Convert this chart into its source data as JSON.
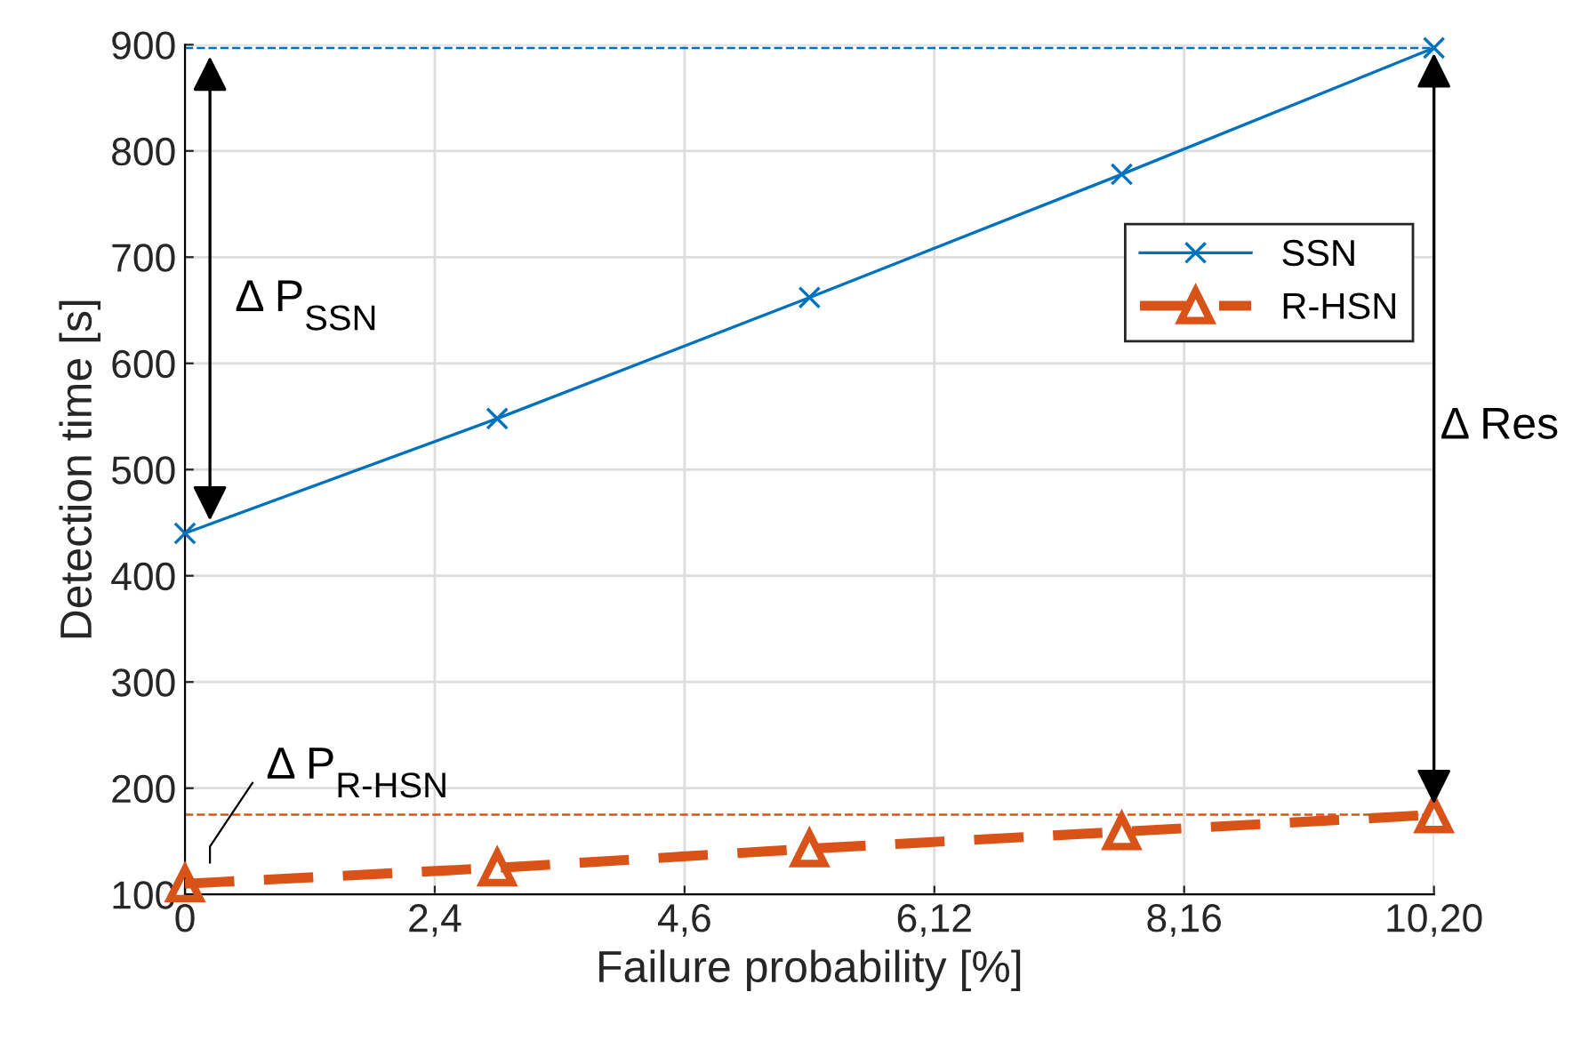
{
  "chart_data": {
    "type": "line",
    "xlabel": "Failure probability [%]",
    "ylabel": "Detection time [s]",
    "categories": [
      "0",
      null,
      null,
      null,
      "2,4",
      null,
      null,
      null,
      "4,6",
      null,
      null,
      null,
      "6,12",
      null,
      null,
      null,
      "8,16",
      null,
      null,
      null,
      "10,20"
    ],
    "series": [
      {
        "name": "SSN",
        "color": "#0072bd",
        "values": [
          440,
          null,
          null,
          null,
          null,
          548,
          null,
          null,
          null,
          null,
          662,
          null,
          null,
          null,
          null,
          778,
          null,
          null,
          null,
          null,
          897
        ],
        "marker": "cross",
        "line_style": "solid"
      },
      {
        "name": "R-HSN",
        "color": "#d95319",
        "values": [
          110,
          null,
          null,
          null,
          null,
          125,
          null,
          null,
          null,
          null,
          143,
          null,
          null,
          null,
          null,
          159,
          null,
          null,
          null,
          null,
          175
        ],
        "marker": "triangle",
        "line_style": "dashed"
      }
    ],
    "ylim": [
      100,
      900
    ],
    "yticks": [
      100,
      200,
      300,
      400,
      500,
      600,
      700,
      800,
      900
    ],
    "ref_lines": [
      {
        "axis": "y",
        "value": 897,
        "color": "#0072bd",
        "line_style": "dashed"
      },
      {
        "axis": "y",
        "value": 175,
        "color": "#d95319",
        "line_style": "dashed"
      }
    ],
    "annotations": [
      "Δ P$_{SSN}$",
      "Δ P$_{R-HSN}$",
      "Δ Res"
    ],
    "grid": true,
    "legend": "right"
  }
}
